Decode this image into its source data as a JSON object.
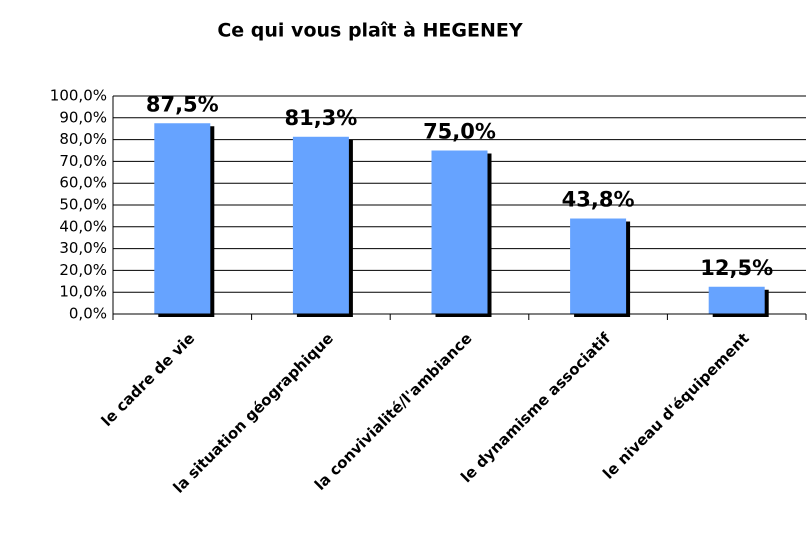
{
  "chart_data": {
    "type": "bar",
    "title": "Ce qui vous plaît à HEGENEY",
    "categories": [
      "le cadre de vie",
      "la situation géographique",
      "la convivialité/l'ambiance",
      "le dynamisme associatif",
      "le niveau d'équipement"
    ],
    "values": [
      87.5,
      81.3,
      75.0,
      43.8,
      12.5
    ],
    "value_labels": [
      "87,5%",
      "81,3%",
      "75,0%",
      "43,8%",
      "12,5%"
    ],
    "color": "#66a3ff",
    "ylim": [
      0,
      100
    ],
    "yticks": [
      {
        "value": 0,
        "label": "0,0%"
      },
      {
        "value": 10,
        "label": "10,0%"
      },
      {
        "value": 20,
        "label": "20,0%"
      },
      {
        "value": 30,
        "label": "30,0%"
      },
      {
        "value": 40,
        "label": "40,0%"
      },
      {
        "value": 50,
        "label": "50,0%"
      },
      {
        "value": 60,
        "label": "60,0%"
      },
      {
        "value": 70,
        "label": "70,0%"
      },
      {
        "value": 80,
        "label": "80,0%"
      },
      {
        "value": 90,
        "label": "90,0%"
      },
      {
        "value": 100,
        "label": "100,0%"
      }
    ],
    "grid": true
  }
}
